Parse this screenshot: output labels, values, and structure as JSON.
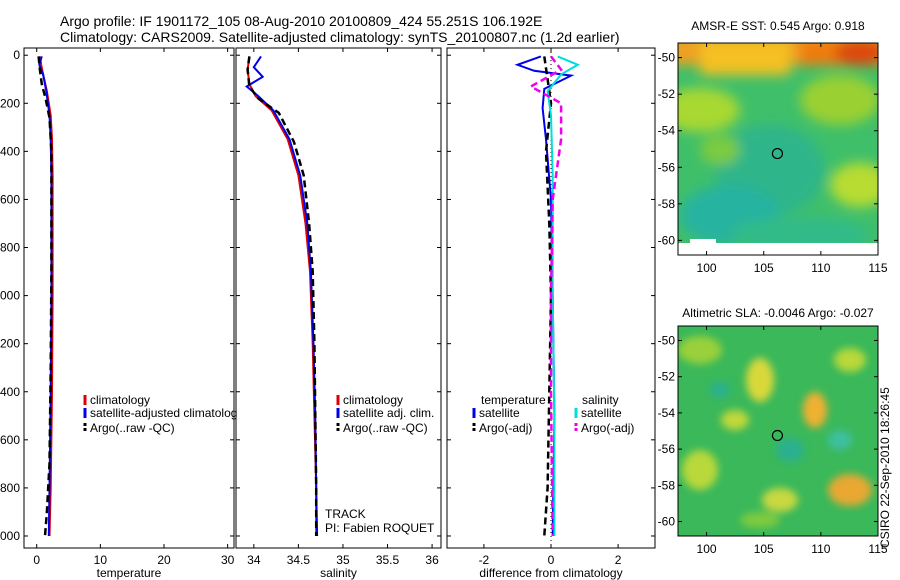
{
  "title_line1": "Argo profile: IF 1901172_105 08-Aug-2010 20100809_424 55.251S 106.192E",
  "title_line2": "Climatology: CARS2009. Satellite-adjusted climatology: synTS_20100807.nc (1.2d earlier)",
  "side_stamp": "CSIRO 22-Sep-2010 18:26:45",
  "colors": {
    "climatology": "#e00000",
    "satellite": "#0000ee",
    "argo": "#000000",
    "satellite_sal": "#00dddd",
    "argo_sal": "#ee00ee"
  },
  "chart_data": [
    {
      "id": "temperature",
      "type": "line",
      "xlabel": "temperature",
      "ylabel": "",
      "xlim": [
        -2,
        31
      ],
      "ylim": [
        2050,
        -30
      ],
      "xticks": [
        0,
        10,
        20,
        30
      ],
      "yticks": [
        0,
        200,
        400,
        600,
        800,
        1000,
        1200,
        1400,
        1600,
        1800,
        2000
      ],
      "legend": [
        "climatology",
        "satellite-adjusted climatology",
        "Argo(..raw -QC)"
      ],
      "legend_display": [
        "climatology",
        "satellite-adjusted climatolog",
        "Argo(..raw -QC)"
      ],
      "series": [
        {
          "name": "climatology",
          "style": "solid",
          "color": "#e00000",
          "points": [
            [
              0.5,
              5
            ],
            [
              0.7,
              40
            ],
            [
              1.0,
              80
            ],
            [
              1.6,
              150
            ],
            [
              2.2,
              250
            ],
            [
              2.4,
              350
            ],
            [
              2.5,
              500
            ],
            [
              2.5,
              700
            ],
            [
              2.5,
              1000
            ],
            [
              2.4,
              1400
            ],
            [
              2.2,
              1800
            ],
            [
              2.0,
              2000
            ]
          ]
        },
        {
          "name": "satellite-adjusted climatology",
          "style": "solid",
          "color": "#0000ee",
          "points": [
            [
              0.8,
              5
            ],
            [
              0.4,
              40
            ],
            [
              1.0,
              80
            ],
            [
              1.5,
              150
            ],
            [
              2.0,
              250
            ],
            [
              2.2,
              350
            ],
            [
              2.3,
              500
            ],
            [
              2.3,
              700
            ],
            [
              2.3,
              1000
            ],
            [
              2.2,
              1400
            ],
            [
              2.0,
              1800
            ],
            [
              1.9,
              2000
            ]
          ]
        },
        {
          "name": "Argo(..raw -QC)",
          "style": "dashed",
          "color": "#000000",
          "points": [
            [
              0.3,
              5
            ],
            [
              0.5,
              60
            ],
            [
              0.8,
              120
            ],
            [
              1.4,
              180
            ],
            [
              2.0,
              260
            ],
            [
              2.3,
              400
            ],
            [
              2.3,
              600
            ],
            [
              2.3,
              900
            ],
            [
              2.2,
              1300
            ],
            [
              2.0,
              1700
            ],
            [
              1.6,
              1900
            ],
            [
              1.3,
              2000
            ]
          ]
        }
      ]
    },
    {
      "id": "salinity",
      "type": "line",
      "xlabel": "salinity",
      "ylabel": "",
      "xlim": [
        33.8,
        36.1
      ],
      "ylim": [
        2050,
        -30
      ],
      "xticks": [
        34,
        34.5,
        35,
        35.5,
        36
      ],
      "yticks": [
        0,
        200,
        400,
        600,
        800,
        1000,
        1200,
        1400,
        1600,
        1800,
        2000
      ],
      "legend": [
        "climatology",
        "satellite adj. clim.",
        "Argo(..raw -QC)"
      ],
      "annotations": [
        "TRACK",
        "PI: Fabien ROQUET"
      ],
      "series": [
        {
          "name": "climatology",
          "style": "solid",
          "color": "#e00000",
          "points": [
            [
              33.95,
              5
            ],
            [
              33.93,
              60
            ],
            [
              33.95,
              120
            ],
            [
              34.02,
              170
            ],
            [
              34.2,
              230
            ],
            [
              34.38,
              350
            ],
            [
              34.5,
              500
            ],
            [
              34.58,
              700
            ],
            [
              34.63,
              900
            ],
            [
              34.66,
              1200
            ],
            [
              34.68,
              1500
            ],
            [
              34.7,
              1800
            ],
            [
              34.7,
              2000
            ]
          ]
        },
        {
          "name": "satellite adj. clim.",
          "style": "solid",
          "color": "#0000ee",
          "points": [
            [
              34.08,
              5
            ],
            [
              34.0,
              50
            ],
            [
              34.1,
              90
            ],
            [
              33.92,
              130
            ],
            [
              34.05,
              170
            ],
            [
              34.22,
              230
            ],
            [
              34.4,
              350
            ],
            [
              34.52,
              500
            ],
            [
              34.6,
              700
            ],
            [
              34.64,
              900
            ],
            [
              34.67,
              1200
            ],
            [
              34.69,
              1500
            ],
            [
              34.7,
              1800
            ],
            [
              34.71,
              2000
            ]
          ]
        },
        {
          "name": "Argo(..raw -QC)",
          "style": "dashed",
          "color": "#000000",
          "points": [
            [
              33.95,
              5
            ],
            [
              33.93,
              60
            ],
            [
              33.95,
              130
            ],
            [
              34.05,
              180
            ],
            [
              34.28,
              240
            ],
            [
              34.45,
              360
            ],
            [
              34.56,
              500
            ],
            [
              34.62,
              700
            ],
            [
              34.66,
              900
            ],
            [
              34.68,
              1200
            ],
            [
              34.69,
              1500
            ],
            [
              34.7,
              1800
            ],
            [
              34.7,
              2000
            ]
          ]
        }
      ]
    },
    {
      "id": "difference",
      "type": "line",
      "xlabel": "difference from climatology",
      "ylabel": "",
      "xlim": [
        -3.1,
        3.1
      ],
      "ylim": [
        2050,
        -30
      ],
      "xticks": [
        -2,
        0,
        2
      ],
      "yticks": [
        0,
        200,
        400,
        600,
        800,
        1000,
        1200,
        1400,
        1600,
        1800,
        2000
      ],
      "legend_headers": [
        "temperature",
        "salinity"
      ],
      "legend": [
        "satellite",
        "Argo(-adj)",
        "satellite",
        "Argo(-adj)"
      ],
      "series": [
        {
          "name": "temperature satellite",
          "style": "solid",
          "color": "#0000ee",
          "points": [
            [
              -0.3,
              5
            ],
            [
              -1.0,
              40
            ],
            [
              -0.5,
              65
            ],
            [
              0.6,
              85
            ],
            [
              -0.2,
              140
            ],
            [
              -0.25,
              220
            ],
            [
              -0.15,
              350
            ],
            [
              0.0,
              600
            ],
            [
              0.05,
              1000
            ],
            [
              0.1,
              1500
            ],
            [
              0.05,
              2000
            ]
          ]
        },
        {
          "name": "temperature Argo(-adj)",
          "style": "dashed",
          "color": "#000000",
          "points": [
            [
              -0.2,
              5
            ],
            [
              -0.1,
              100
            ],
            [
              0.0,
              200
            ],
            [
              -0.15,
              400
            ],
            [
              -0.05,
              700
            ],
            [
              0.0,
              1000
            ],
            [
              -0.05,
              1400
            ],
            [
              -0.1,
              1800
            ],
            [
              -0.2,
              2000
            ]
          ]
        },
        {
          "name": "salinity satellite",
          "style": "solid",
          "color": "#00dddd",
          "points": [
            [
              0.2,
              5
            ],
            [
              0.8,
              40
            ],
            [
              0.3,
              80
            ],
            [
              -0.1,
              150
            ],
            [
              0.0,
              250
            ],
            [
              0.05,
              500
            ],
            [
              0.05,
              1000
            ],
            [
              0.1,
              1500
            ],
            [
              0.1,
              2000
            ]
          ]
        },
        {
          "name": "salinity Argo(-adj)",
          "style": "dashed",
          "color": "#ee00ee",
          "points": [
            [
              0.0,
              5
            ],
            [
              0.3,
              60
            ],
            [
              -0.6,
              130
            ],
            [
              0.3,
              200
            ],
            [
              0.3,
              350
            ],
            [
              0.05,
              600
            ],
            [
              0.0,
              1000
            ],
            [
              0.0,
              1400
            ],
            [
              0.05,
              2000
            ]
          ]
        }
      ]
    },
    {
      "id": "sst_map",
      "type": "heatmap",
      "title": "AMSR-E SST: 0.545  Argo: 0.918",
      "xlim": [
        97.5,
        115
      ],
      "ylim": [
        -60.8,
        -49.2
      ],
      "xticks": [
        100,
        105,
        110,
        115
      ],
      "yticks": [
        -50,
        -52,
        -54,
        -56,
        -58,
        -60
      ],
      "marker": [
        106.2,
        -55.25
      ]
    },
    {
      "id": "sla_map",
      "type": "heatmap",
      "title": "Altimetric SLA: -0.0046  Argo: -0.027",
      "xlim": [
        97.5,
        115
      ],
      "ylim": [
        -60.8,
        -49.2
      ],
      "xticks": [
        100,
        105,
        110,
        115
      ],
      "yticks": [
        -50,
        -52,
        -54,
        -56,
        -58,
        -60
      ],
      "marker": [
        106.2,
        -55.25
      ]
    }
  ]
}
